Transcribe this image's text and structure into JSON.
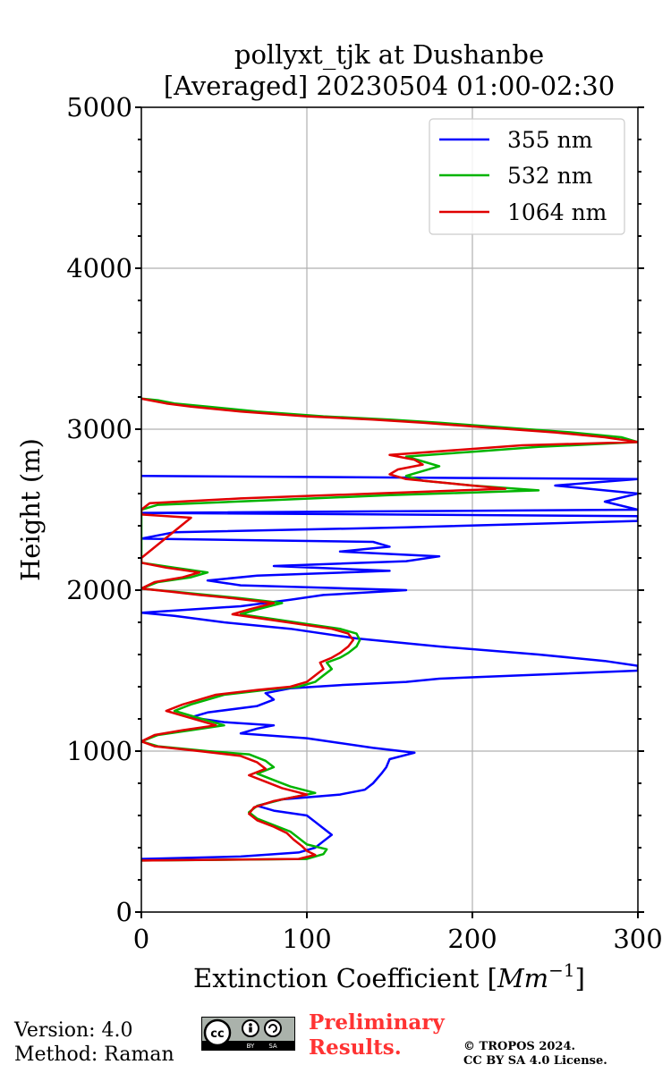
{
  "chart_data": {
    "type": "line",
    "title_line1": "pollyxt_tjk at Dushanbe",
    "title_line2": "[Averaged] 20230504 01:00-02:30",
    "xlabel_text": "Extinction Coefficient [",
    "xlabel_unit_base": "Mm",
    "xlabel_unit_exp": "−1",
    "xlabel_close": "]",
    "ylabel": "Height (m)",
    "xlim": [
      0,
      300
    ],
    "ylim": [
      0,
      5000
    ],
    "xticks": [
      0,
      100,
      200,
      300
    ],
    "yticks": [
      0,
      1000,
      2000,
      3000,
      4000,
      5000
    ],
    "yminor_step": 200,
    "grid": true,
    "legend_position": "top-right",
    "series": [
      {
        "name": "355 nm",
        "color": "#0000ff",
        "points": [
          [
            0,
            330
          ],
          [
            60,
            345
          ],
          [
            95,
            370
          ],
          [
            105,
            400
          ],
          [
            110,
            440
          ],
          [
            115,
            480
          ],
          [
            110,
            520
          ],
          [
            105,
            560
          ],
          [
            100,
            600
          ],
          [
            80,
            630
          ],
          [
            70,
            660
          ],
          [
            85,
            700
          ],
          [
            120,
            730
          ],
          [
            135,
            760
          ],
          [
            140,
            800
          ],
          [
            145,
            860
          ],
          [
            148,
            900
          ],
          [
            150,
            950
          ],
          [
            165,
            990
          ],
          [
            140,
            1020
          ],
          [
            120,
            1050
          ],
          [
            100,
            1080
          ],
          [
            60,
            1110
          ],
          [
            70,
            1140
          ],
          [
            80,
            1160
          ],
          [
            50,
            1180
          ],
          [
            30,
            1210
          ],
          [
            40,
            1240
          ],
          [
            70,
            1280
          ],
          [
            80,
            1320
          ],
          [
            75,
            1360
          ],
          [
            90,
            1390
          ],
          [
            120,
            1410
          ],
          [
            160,
            1430
          ],
          [
            180,
            1450
          ],
          [
            300,
            1500
          ],
          [
            300,
            1530
          ],
          [
            280,
            1560
          ],
          [
            240,
            1600
          ],
          [
            180,
            1650
          ],
          [
            130,
            1700
          ],
          [
            90,
            1760
          ],
          [
            50,
            1800
          ],
          [
            20,
            1840
          ],
          [
            0,
            1860
          ],
          [
            60,
            1900
          ],
          [
            90,
            1940
          ],
          [
            110,
            1970
          ],
          [
            160,
            2000
          ],
          [
            60,
            2030
          ],
          [
            40,
            2060
          ],
          [
            70,
            2090
          ],
          [
            150,
            2120
          ],
          [
            80,
            2150
          ],
          [
            160,
            2180
          ],
          [
            180,
            2210
          ],
          [
            120,
            2240
          ],
          [
            150,
            2270
          ],
          [
            140,
            2300
          ],
          [
            0,
            2320
          ],
          [
            20,
            2360
          ],
          [
            160,
            2390
          ],
          [
            300,
            2430
          ],
          [
            300,
            2460
          ],
          [
            0,
            2480
          ],
          [
            300,
            2500
          ],
          [
            280,
            2550
          ],
          [
            300,
            2600
          ],
          [
            250,
            2650
          ],
          [
            300,
            2690
          ],
          [
            0,
            2710
          ]
        ]
      },
      {
        "name": "532 nm",
        "color": "#00b400",
        "points": [
          [
            0,
            320
          ],
          [
            100,
            330
          ],
          [
            110,
            360
          ],
          [
            112,
            390
          ],
          [
            100,
            420
          ],
          [
            95,
            460
          ],
          [
            90,
            500
          ],
          [
            80,
            540
          ],
          [
            70,
            580
          ],
          [
            65,
            620
          ],
          [
            70,
            660
          ],
          [
            85,
            700
          ],
          [
            105,
            740
          ],
          [
            90,
            780
          ],
          [
            80,
            820
          ],
          [
            70,
            860
          ],
          [
            80,
            900
          ],
          [
            75,
            940
          ],
          [
            65,
            980
          ],
          [
            40,
            1000
          ],
          [
            10,
            1030
          ],
          [
            0,
            1060
          ],
          [
            10,
            1100
          ],
          [
            30,
            1130
          ],
          [
            50,
            1160
          ],
          [
            40,
            1190
          ],
          [
            30,
            1220
          ],
          [
            20,
            1250
          ],
          [
            30,
            1290
          ],
          [
            40,
            1320
          ],
          [
            50,
            1350
          ],
          [
            75,
            1380
          ],
          [
            95,
            1400
          ],
          [
            105,
            1430
          ],
          [
            110,
            1470
          ],
          [
            115,
            1510
          ],
          [
            112,
            1550
          ],
          [
            120,
            1580
          ],
          [
            125,
            1610
          ],
          [
            130,
            1650
          ],
          [
            132,
            1690
          ],
          [
            130,
            1730
          ],
          [
            120,
            1760
          ],
          [
            100,
            1790
          ],
          [
            80,
            1820
          ],
          [
            60,
            1850
          ],
          [
            70,
            1880
          ],
          [
            85,
            1920
          ],
          [
            60,
            1950
          ],
          [
            40,
            1970
          ],
          [
            20,
            1990
          ],
          [
            0,
            2010
          ],
          [
            10,
            2050
          ],
          [
            30,
            2080
          ],
          [
            40,
            2110
          ],
          [
            20,
            2140
          ],
          [
            0,
            2170
          ],
          [
            0,
            2200
          ],
          [
            0,
            2240
          ],
          [
            0,
            2280
          ],
          [
            0,
            2330
          ],
          [
            0,
            2380
          ],
          [
            0,
            2430
          ],
          [
            0,
            2470
          ],
          [
            0,
            2500
          ],
          [
            10,
            2530
          ],
          [
            80,
            2560
          ],
          [
            150,
            2590
          ],
          [
            240,
            2620
          ],
          [
            200,
            2650
          ],
          [
            170,
            2680
          ],
          [
            160,
            2710
          ],
          [
            170,
            2740
          ],
          [
            180,
            2770
          ],
          [
            170,
            2800
          ],
          [
            160,
            2830
          ],
          [
            200,
            2860
          ],
          [
            240,
            2890
          ],
          [
            300,
            2920
          ],
          [
            290,
            2950
          ],
          [
            260,
            2980
          ],
          [
            220,
            3010
          ],
          [
            180,
            3040
          ],
          [
            150,
            3060
          ],
          [
            110,
            3080
          ],
          [
            70,
            3110
          ],
          [
            40,
            3140
          ],
          [
            20,
            3160
          ],
          [
            10,
            3180
          ],
          [
            0,
            3190
          ]
        ]
      },
      {
        "name": "1064 nm",
        "color": "#e00000",
        "points": [
          [
            0,
            320
          ],
          [
            95,
            330
          ],
          [
            105,
            355
          ],
          [
            100,
            380
          ],
          [
            97,
            410
          ],
          [
            92,
            450
          ],
          [
            88,
            490
          ],
          [
            80,
            530
          ],
          [
            70,
            570
          ],
          [
            65,
            610
          ],
          [
            68,
            650
          ],
          [
            80,
            690
          ],
          [
            100,
            730
          ],
          [
            85,
            770
          ],
          [
            75,
            810
          ],
          [
            65,
            850
          ],
          [
            75,
            890
          ],
          [
            70,
            930
          ],
          [
            60,
            970
          ],
          [
            35,
            1000
          ],
          [
            8,
            1030
          ],
          [
            0,
            1060
          ],
          [
            8,
            1100
          ],
          [
            25,
            1130
          ],
          [
            45,
            1160
          ],
          [
            35,
            1190
          ],
          [
            25,
            1220
          ],
          [
            15,
            1250
          ],
          [
            25,
            1290
          ],
          [
            35,
            1320
          ],
          [
            45,
            1350
          ],
          [
            70,
            1380
          ],
          [
            90,
            1400
          ],
          [
            100,
            1430
          ],
          [
            105,
            1470
          ],
          [
            110,
            1510
          ],
          [
            108,
            1550
          ],
          [
            115,
            1580
          ],
          [
            120,
            1610
          ],
          [
            125,
            1650
          ],
          [
            128,
            1690
          ],
          [
            125,
            1730
          ],
          [
            115,
            1760
          ],
          [
            95,
            1790
          ],
          [
            75,
            1820
          ],
          [
            55,
            1850
          ],
          [
            65,
            1880
          ],
          [
            80,
            1920
          ],
          [
            55,
            1950
          ],
          [
            35,
            1970
          ],
          [
            18,
            1990
          ],
          [
            0,
            2010
          ],
          [
            8,
            2050
          ],
          [
            25,
            2080
          ],
          [
            35,
            2110
          ],
          [
            15,
            2140
          ],
          [
            0,
            2170
          ],
          [
            0,
            2200
          ],
          [
            30,
            2450
          ],
          [
            0,
            2470
          ],
          [
            0,
            2500
          ],
          [
            5,
            2540
          ],
          [
            60,
            2570
          ],
          [
            140,
            2600
          ],
          [
            220,
            2630
          ],
          [
            190,
            2660
          ],
          [
            160,
            2690
          ],
          [
            150,
            2720
          ],
          [
            155,
            2750
          ],
          [
            170,
            2780
          ],
          [
            165,
            2810
          ],
          [
            150,
            2840
          ],
          [
            190,
            2870
          ],
          [
            230,
            2900
          ],
          [
            300,
            2920
          ],
          [
            280,
            2950
          ],
          [
            250,
            2980
          ],
          [
            210,
            3010
          ],
          [
            170,
            3040
          ],
          [
            140,
            3060
          ],
          [
            100,
            3080
          ],
          [
            60,
            3110
          ],
          [
            30,
            3140
          ],
          [
            15,
            3160
          ],
          [
            5,
            3180
          ],
          [
            0,
            3190
          ]
        ]
      }
    ]
  },
  "footer": {
    "version": "Version: 4.0",
    "method": "Method: Raman",
    "preliminary_line1": "Preliminary",
    "preliminary_line2": "Results.",
    "copyright_line1": "© TROPOS 2024.",
    "copyright_line2": "CC BY SA 4.0 License.",
    "cc_label_by": "BY",
    "cc_label_sa": "SA"
  }
}
